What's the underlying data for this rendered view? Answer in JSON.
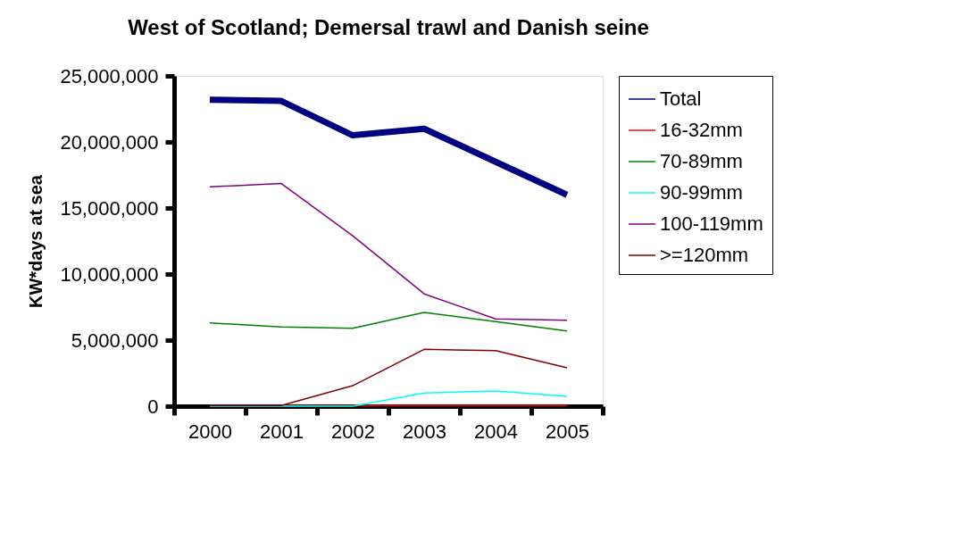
{
  "chart_data": {
    "type": "line",
    "title": "West of Scotland; Demersal trawl and Danish seine",
    "ylabel": "KW*days at sea",
    "categories": [
      "2000",
      "2001",
      "2002",
      "2003",
      "2004",
      "2005"
    ],
    "series": [
      {
        "name": "Total",
        "color": "#000080",
        "values": [
          23200000,
          23100000,
          20500000,
          21000000,
          18500000,
          16000000
        ]
      },
      {
        "name": "16-32mm",
        "color": "#ff0000",
        "values": [
          50000,
          50000,
          50000,
          50000,
          50000,
          50000
        ]
      },
      {
        "name": "70-89mm",
        "color": "#008000",
        "values": [
          6300000,
          6000000,
          5900000,
          7100000,
          6400000,
          5700000
        ]
      },
      {
        "name": "90-99mm",
        "color": "#00ffff",
        "values": [
          0,
          0,
          0,
          1000000,
          1150000,
          750000
        ]
      },
      {
        "name": "100-119mm",
        "color": "#800080",
        "values": [
          16600000,
          16850000,
          12900000,
          8500000,
          6600000,
          6500000
        ]
      },
      {
        "name": ">=120mm",
        "color": "#800000",
        "values": [
          50000,
          50000,
          1550000,
          4300000,
          4200000,
          2900000
        ]
      }
    ],
    "ylim": [
      0,
      25000000
    ],
    "yticks": [
      {
        "value": 0,
        "label": "0"
      },
      {
        "value": 5000000,
        "label": "5,000,000"
      },
      {
        "value": 10000000,
        "label": "10,000,000"
      },
      {
        "value": 15000000,
        "label": "15,000,000"
      },
      {
        "value": 20000000,
        "label": "20,000,000"
      },
      {
        "value": 25000000,
        "label": "25,000,000"
      }
    ],
    "grid": false,
    "legend": "right",
    "marker": "none"
  }
}
